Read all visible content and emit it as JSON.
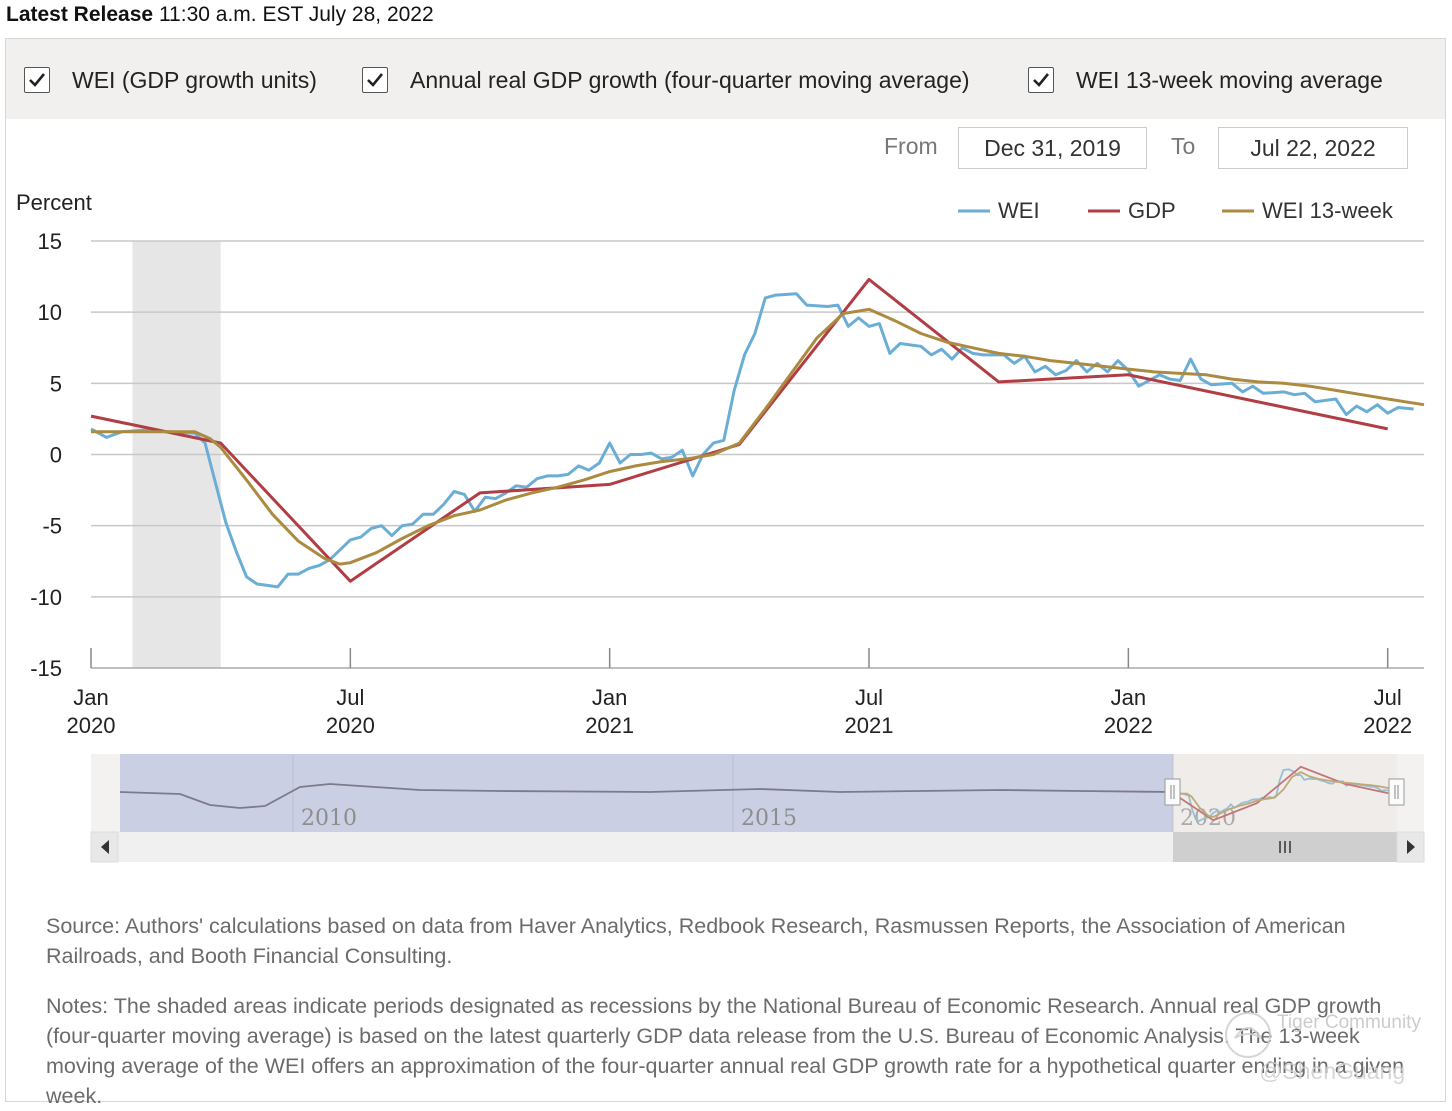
{
  "header": {
    "release_prefix": "Latest Release",
    "release_time": "11:30 a.m. EST July 28, 2022"
  },
  "toggles": [
    {
      "label": "WEI (GDP growth units)",
      "checked": true
    },
    {
      "label": "Annual real GDP growth (four-quarter moving average)",
      "checked": true
    },
    {
      "label": "WEI 13-week moving average",
      "checked": true
    }
  ],
  "range": {
    "from_label": "From",
    "from_value": "Dec 31, 2019",
    "to_label": "To",
    "to_value": "Jul 22, 2022"
  },
  "chart_data": {
    "type": "line",
    "ylabel": "Percent",
    "ylim": [
      -15,
      15
    ],
    "yticks": [
      15,
      10,
      5,
      0,
      -5,
      -10,
      -15
    ],
    "xlim": [
      2020.0,
      2022.57
    ],
    "xticks": [
      {
        "x": 2020.0,
        "line1": "Jan",
        "line2": "2020"
      },
      {
        "x": 2020.5,
        "line1": "Jul",
        "line2": "2020"
      },
      {
        "x": 2021.0,
        "line1": "Jan",
        "line2": "2021"
      },
      {
        "x": 2021.5,
        "line1": "Jul",
        "line2": "2021"
      },
      {
        "x": 2022.0,
        "line1": "Jan",
        "line2": "2022"
      },
      {
        "x": 2022.5,
        "line1": "Jul",
        "line2": "2022"
      }
    ],
    "recession": [
      2020.08,
      2020.25
    ],
    "legend_position": "top-right",
    "series": [
      {
        "name": "WEI",
        "color": "#6aaed6",
        "points": [
          [
            2020.0,
            1.8
          ],
          [
            2020.03,
            1.2
          ],
          [
            2020.06,
            1.6
          ],
          [
            2020.1,
            1.7
          ],
          [
            2020.15,
            1.6
          ],
          [
            2020.2,
            1.5
          ],
          [
            2020.22,
            0.8
          ],
          [
            2020.24,
            -2.0
          ],
          [
            2020.26,
            -4.8
          ],
          [
            2020.28,
            -6.8
          ],
          [
            2020.3,
            -8.6
          ],
          [
            2020.32,
            -9.1
          ],
          [
            2020.34,
            -9.2
          ],
          [
            2020.36,
            -9.3
          ],
          [
            2020.38,
            -8.4
          ],
          [
            2020.4,
            -8.4
          ],
          [
            2020.42,
            -8.0
          ],
          [
            2020.44,
            -7.8
          ],
          [
            2020.46,
            -7.4
          ],
          [
            2020.48,
            -6.7
          ],
          [
            2020.5,
            -6.0
          ],
          [
            2020.52,
            -5.8
          ],
          [
            2020.54,
            -5.2
          ],
          [
            2020.56,
            -5.0
          ],
          [
            2020.58,
            -5.7
          ],
          [
            2020.6,
            -5.0
          ],
          [
            2020.62,
            -4.9
          ],
          [
            2020.64,
            -4.2
          ],
          [
            2020.66,
            -4.2
          ],
          [
            2020.68,
            -3.5
          ],
          [
            2020.7,
            -2.6
          ],
          [
            2020.72,
            -2.8
          ],
          [
            2020.74,
            -4.0
          ],
          [
            2020.76,
            -3.0
          ],
          [
            2020.78,
            -3.1
          ],
          [
            2020.8,
            -2.7
          ],
          [
            2020.82,
            -2.2
          ],
          [
            2020.84,
            -2.3
          ],
          [
            2020.86,
            -1.7
          ],
          [
            2020.88,
            -1.5
          ],
          [
            2020.9,
            -1.5
          ],
          [
            2020.92,
            -1.4
          ],
          [
            2020.94,
            -0.8
          ],
          [
            2020.96,
            -1.1
          ],
          [
            2020.98,
            -0.6
          ],
          [
            2021.0,
            0.8
          ],
          [
            2021.02,
            -0.6
          ],
          [
            2021.04,
            0.0
          ],
          [
            2021.06,
            0.0
          ],
          [
            2021.08,
            0.1
          ],
          [
            2021.1,
            -0.3
          ],
          [
            2021.12,
            -0.2
          ],
          [
            2021.14,
            0.3
          ],
          [
            2021.16,
            -1.5
          ],
          [
            2021.18,
            0.0
          ],
          [
            2021.2,
            0.8
          ],
          [
            2021.22,
            1.0
          ],
          [
            2021.24,
            4.5
          ],
          [
            2021.26,
            7.0
          ],
          [
            2021.28,
            8.5
          ],
          [
            2021.3,
            11.0
          ],
          [
            2021.32,
            11.2
          ],
          [
            2021.36,
            11.3
          ],
          [
            2021.38,
            10.5
          ],
          [
            2021.42,
            10.4
          ],
          [
            2021.44,
            10.5
          ],
          [
            2021.46,
            9.0
          ],
          [
            2021.48,
            9.6
          ],
          [
            2021.5,
            9.0
          ],
          [
            2021.52,
            9.2
          ],
          [
            2021.54,
            7.1
          ],
          [
            2021.56,
            7.8
          ],
          [
            2021.6,
            7.6
          ],
          [
            2021.62,
            7.0
          ],
          [
            2021.64,
            7.4
          ],
          [
            2021.66,
            6.7
          ],
          [
            2021.68,
            7.5
          ],
          [
            2021.7,
            7.1
          ],
          [
            2021.72,
            7.0
          ],
          [
            2021.76,
            7.0
          ],
          [
            2021.78,
            6.4
          ],
          [
            2021.8,
            6.9
          ],
          [
            2021.82,
            5.8
          ],
          [
            2021.84,
            6.2
          ],
          [
            2021.86,
            5.6
          ],
          [
            2021.88,
            5.9
          ],
          [
            2021.9,
            6.6
          ],
          [
            2021.92,
            5.8
          ],
          [
            2021.94,
            6.4
          ],
          [
            2021.96,
            5.8
          ],
          [
            2021.98,
            6.6
          ],
          [
            2022.0,
            5.9
          ],
          [
            2022.02,
            4.8
          ],
          [
            2022.04,
            5.2
          ],
          [
            2022.06,
            5.6
          ],
          [
            2022.08,
            5.3
          ],
          [
            2022.1,
            5.2
          ],
          [
            2022.12,
            6.7
          ],
          [
            2022.14,
            5.3
          ],
          [
            2022.16,
            4.9
          ],
          [
            2022.2,
            5.0
          ],
          [
            2022.22,
            4.4
          ],
          [
            2022.24,
            4.8
          ],
          [
            2022.26,
            4.3
          ],
          [
            2022.3,
            4.4
          ],
          [
            2022.32,
            4.2
          ],
          [
            2022.34,
            4.3
          ],
          [
            2022.36,
            3.7
          ],
          [
            2022.38,
            3.8
          ],
          [
            2022.4,
            3.9
          ],
          [
            2022.42,
            2.8
          ],
          [
            2022.44,
            3.4
          ],
          [
            2022.46,
            3.0
          ],
          [
            2022.48,
            3.5
          ],
          [
            2022.5,
            2.9
          ],
          [
            2022.52,
            3.3
          ],
          [
            2022.55,
            3.2
          ]
        ]
      },
      {
        "name": "GDP",
        "color": "#b13d45",
        "points": [
          [
            2020.0,
            2.7
          ],
          [
            2020.25,
            0.8
          ],
          [
            2020.5,
            -8.9
          ],
          [
            2020.75,
            -2.7
          ],
          [
            2021.0,
            -2.1
          ],
          [
            2021.25,
            0.7
          ],
          [
            2021.5,
            12.3
          ],
          [
            2021.75,
            5.1
          ],
          [
            2022.0,
            5.6
          ],
          [
            2022.5,
            1.8
          ]
        ]
      },
      {
        "name": "WEI 13-week",
        "color": "#ac8a3f",
        "points": [
          [
            2020.0,
            1.6
          ],
          [
            2020.1,
            1.6
          ],
          [
            2020.2,
            1.6
          ],
          [
            2020.23,
            1.1
          ],
          [
            2020.25,
            0.5
          ],
          [
            2020.3,
            -1.8
          ],
          [
            2020.35,
            -4.2
          ],
          [
            2020.4,
            -6.1
          ],
          [
            2020.45,
            -7.3
          ],
          [
            2020.48,
            -7.7
          ],
          [
            2020.5,
            -7.6
          ],
          [
            2020.55,
            -6.9
          ],
          [
            2020.6,
            -5.9
          ],
          [
            2020.65,
            -5.0
          ],
          [
            2020.7,
            -4.3
          ],
          [
            2020.75,
            -3.9
          ],
          [
            2020.8,
            -3.2
          ],
          [
            2020.85,
            -2.7
          ],
          [
            2020.9,
            -2.3
          ],
          [
            2020.95,
            -1.8
          ],
          [
            2021.0,
            -1.2
          ],
          [
            2021.05,
            -0.8
          ],
          [
            2021.1,
            -0.5
          ],
          [
            2021.15,
            -0.3
          ],
          [
            2021.2,
            0.0
          ],
          [
            2021.25,
            0.8
          ],
          [
            2021.3,
            3.2
          ],
          [
            2021.35,
            5.7
          ],
          [
            2021.4,
            8.2
          ],
          [
            2021.45,
            9.9
          ],
          [
            2021.5,
            10.2
          ],
          [
            2021.55,
            9.4
          ],
          [
            2021.6,
            8.5
          ],
          [
            2021.65,
            7.9
          ],
          [
            2021.7,
            7.5
          ],
          [
            2021.75,
            7.1
          ],
          [
            2021.8,
            6.9
          ],
          [
            2021.85,
            6.6
          ],
          [
            2021.9,
            6.4
          ],
          [
            2021.95,
            6.2
          ],
          [
            2022.0,
            6.0
          ],
          [
            2022.05,
            5.8
          ],
          [
            2022.1,
            5.7
          ],
          [
            2022.15,
            5.6
          ],
          [
            2022.2,
            5.3
          ],
          [
            2022.25,
            5.1
          ],
          [
            2022.3,
            5.0
          ],
          [
            2022.35,
            4.8
          ],
          [
            2022.4,
            4.5
          ],
          [
            2022.45,
            4.2
          ],
          [
            2022.5,
            3.9
          ],
          [
            2022.57,
            3.5
          ]
        ]
      }
    ],
    "navigator": {
      "labels": [
        "2010",
        "2015",
        "2020"
      ],
      "xlim": [
        2008.0,
        2022.6
      ],
      "selection": [
        2020.0,
        2022.57
      ]
    }
  },
  "source_text": "Source: Authors' calculations based on data from Haver Analytics, Redbook Research, Rasmussen Reports, the Association of American Railroads, and Booth Financial Consulting.",
  "notes_text": "Notes: The shaded areas indicate periods designated as recessions by the National Bureau of Economic Research. Annual real GDP growth (four-quarter moving average) is based on the latest quarterly GDP data release from the U.S. Bureau of Economic Analysis. The 13-week moving average of the WEI offers an approximation of the four-quarter annual real GDP growth rate for a hypothetical quarter ending in a given week.",
  "watermark": {
    "line1": "Tiger Community",
    "line2": "@ShenGuang"
  }
}
